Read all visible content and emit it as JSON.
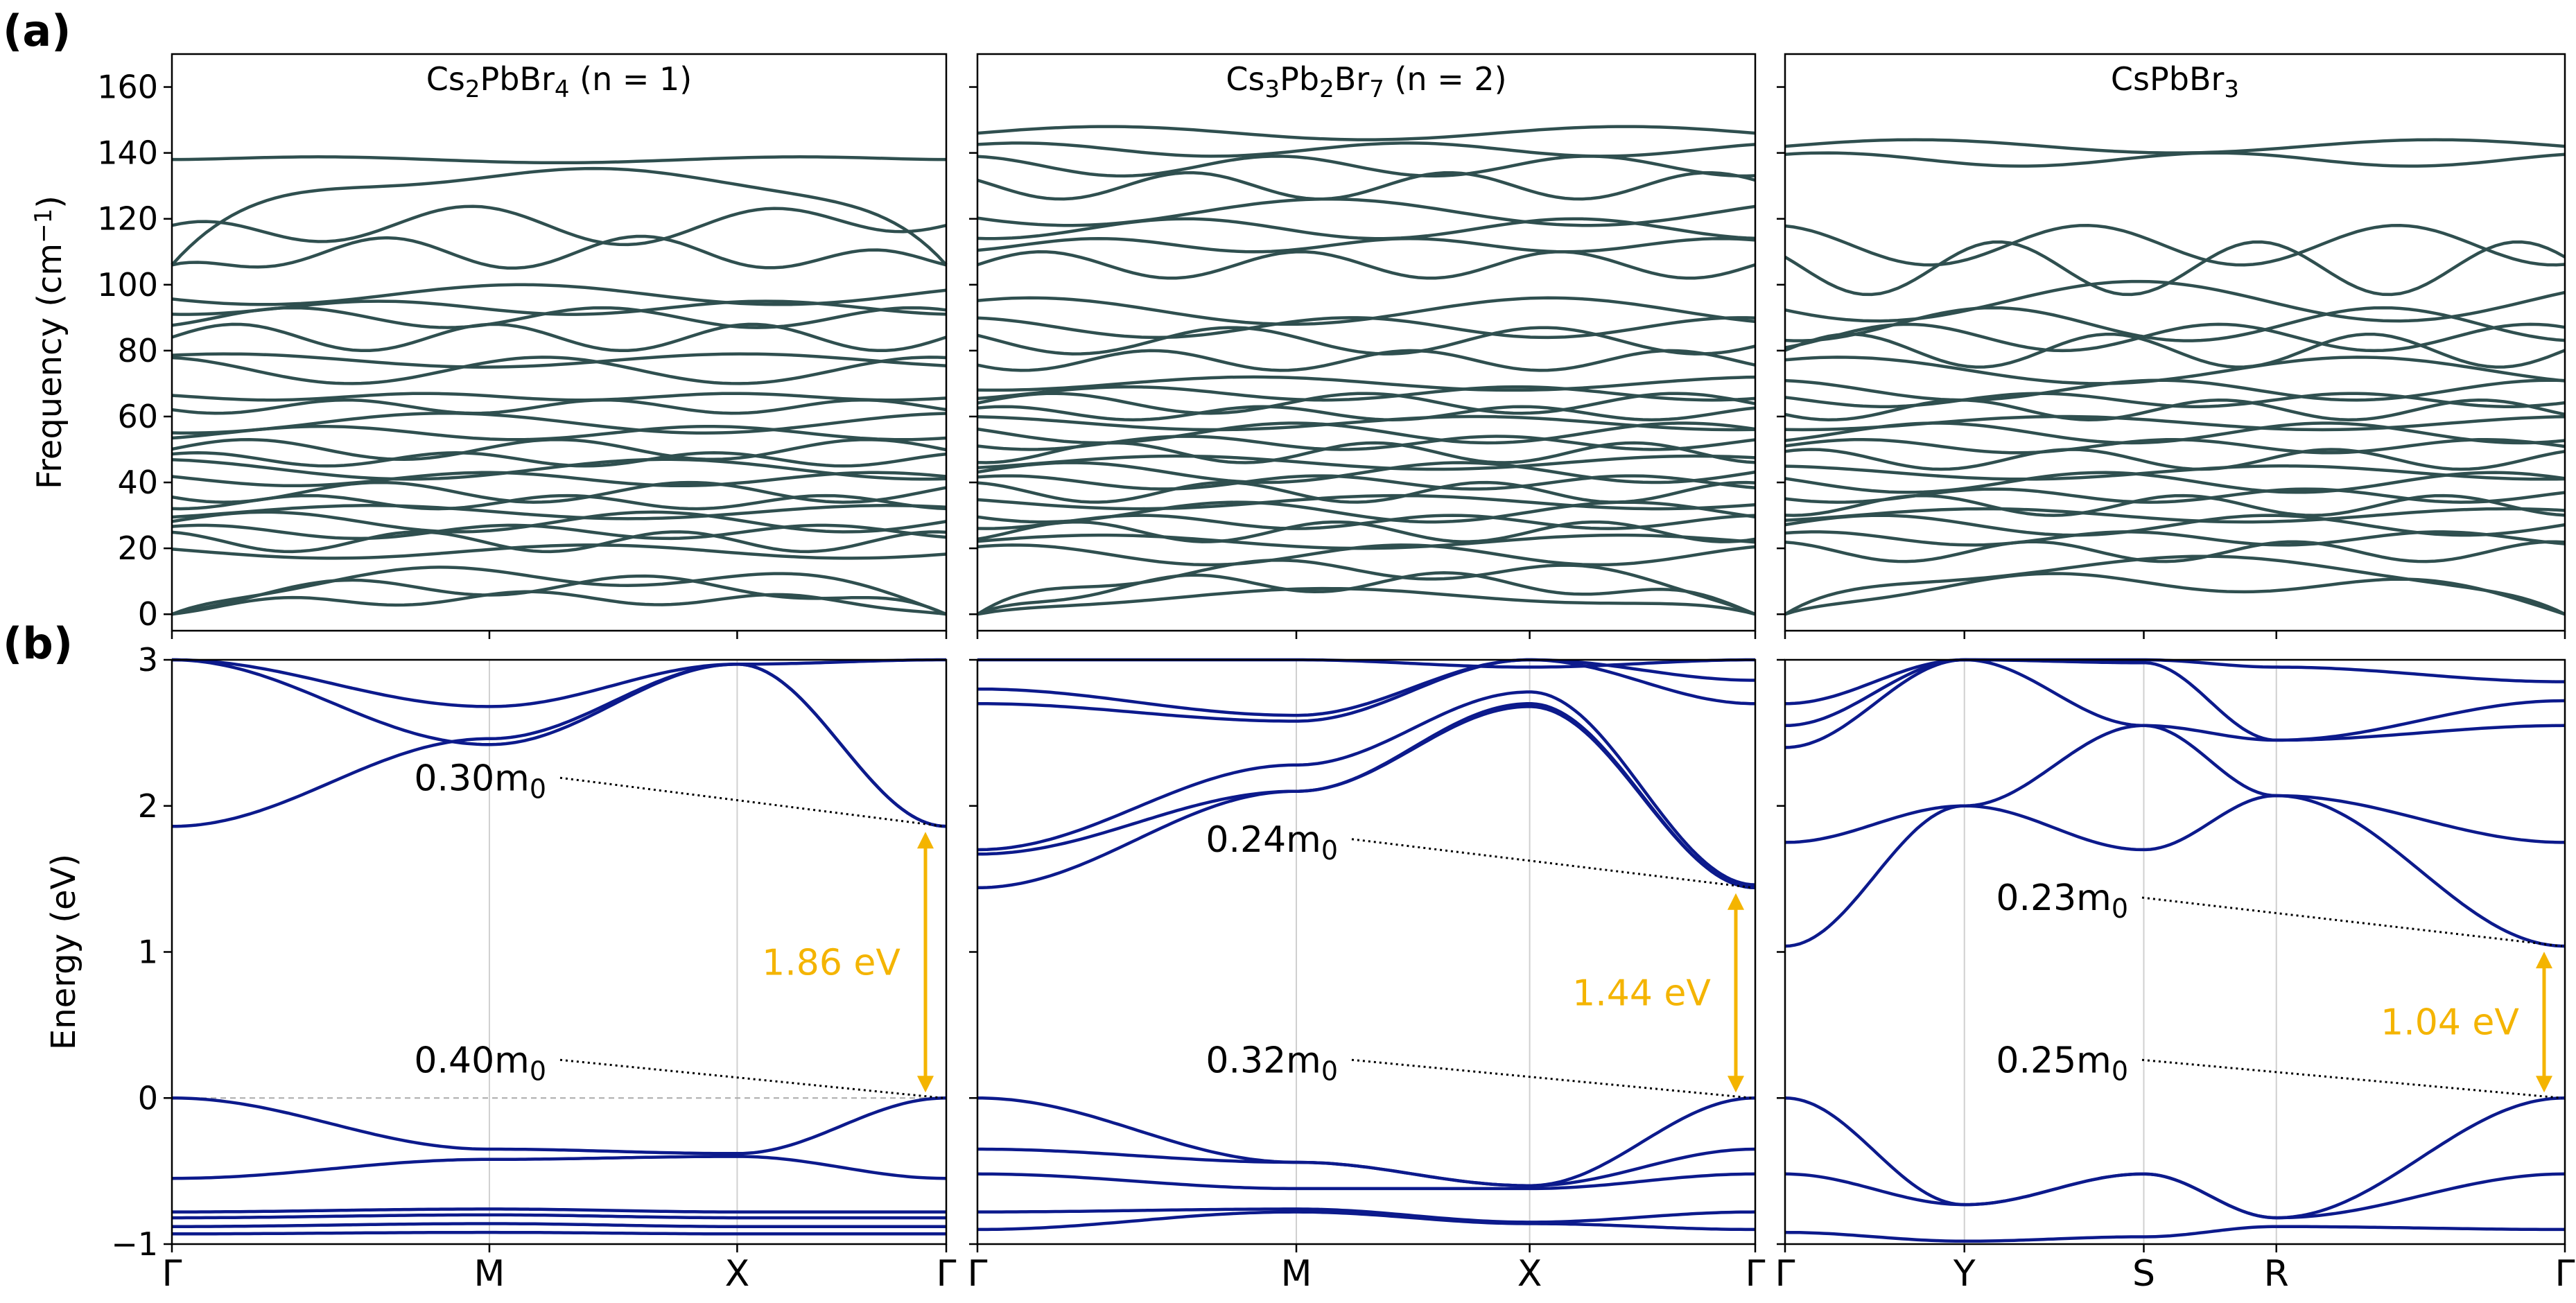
{
  "panel_labels": [
    "(a)",
    "(b)"
  ],
  "colors": {
    "phonon": "#2f4f4f",
    "band": "#0c1a8c",
    "gap_arrow": "#f4b400",
    "grid": "#d0d0d0"
  },
  "chart_data": [
    {
      "id": "phonon-n1",
      "type": "line",
      "title_main": "Cs",
      "title_parts": [
        [
          "Cs",
          ""
        ],
        [
          "2",
          "sub"
        ],
        [
          "PbBr",
          ""
        ],
        [
          "4",
          "sub"
        ],
        [
          " (n = 1)",
          ""
        ]
      ],
      "ylabel_main": "Frequency (cm",
      "ylabel_sup": "−1",
      "ylabel_end": ")",
      "ylim": [
        -5,
        170
      ],
      "yticks": [
        "0",
        "20",
        "40",
        "60",
        "80",
        "100",
        "120",
        "140",
        "160"
      ],
      "ytick_values": [
        0,
        20,
        40,
        60,
        80,
        100,
        120,
        140,
        160
      ],
      "kpoints": [
        "Γ",
        "M",
        "X",
        "Γ"
      ],
      "kpoint_positions": [
        0,
        0.41,
        0.73,
        1.0
      ],
      "bands": [
        {
          "level": 138,
          "amp": 1,
          "gamma_start": 138
        },
        {
          "level": 134,
          "amp": 2,
          "gamma_start": 106
        },
        {
          "level": 118,
          "amp": 6,
          "gamma_start": 118
        },
        {
          "level": 110,
          "amp": 5,
          "gamma_start": 106
        },
        {
          "level": 97,
          "amp": 3
        },
        {
          "level": 93,
          "amp": 2
        },
        {
          "level": 90,
          "amp": 3
        },
        {
          "level": 84,
          "amp": 4
        },
        {
          "level": 77,
          "amp": 2
        },
        {
          "level": 74,
          "amp": 4
        },
        {
          "level": 66,
          "amp": 1
        },
        {
          "level": 63,
          "amp": 2
        },
        {
          "level": 58,
          "amp": 3
        },
        {
          "level": 55,
          "amp": 2
        },
        {
          "level": 50,
          "amp": 3
        },
        {
          "level": 47,
          "amp": 2
        },
        {
          "level": 44,
          "amp": 3
        },
        {
          "level": 41,
          "amp": 2
        },
        {
          "level": 37,
          "amp": 3
        },
        {
          "level": 34,
          "amp": 2
        },
        {
          "level": 31,
          "amp": 2
        },
        {
          "level": 28,
          "amp": 3
        },
        {
          "level": 25,
          "amp": 2
        },
        {
          "level": 22,
          "amp": 3
        },
        {
          "level": 19,
          "amp": 2
        },
        {
          "level": 12,
          "amp": 3,
          "gamma_start": 0
        },
        {
          "level": 9,
          "amp": 3,
          "gamma_start": 0
        },
        {
          "level": 5,
          "amp": 2,
          "gamma_start": 0
        }
      ]
    },
    {
      "id": "phonon-n2",
      "type": "line",
      "title_parts": [
        [
          "Cs",
          ""
        ],
        [
          "3",
          "sub"
        ],
        [
          "Pb",
          ""
        ],
        [
          "2",
          "sub"
        ],
        [
          "Br",
          ""
        ],
        [
          "7",
          "sub"
        ],
        [
          " (n = 2)",
          ""
        ]
      ],
      "ylim": [
        -5,
        170
      ],
      "kpoints": [
        "Γ",
        "M",
        "X",
        "Γ"
      ],
      "kpoint_positions": [
        0,
        0.41,
        0.71,
        1.0
      ],
      "bands": [
        {
          "level": 146,
          "amp": 2
        },
        {
          "level": 141,
          "amp": 2
        },
        {
          "level": 136,
          "amp": 3
        },
        {
          "level": 130,
          "amp": 4
        },
        {
          "level": 122,
          "amp": 4
        },
        {
          "level": 117,
          "amp": 3
        },
        {
          "level": 112,
          "amp": 2
        },
        {
          "level": 106,
          "amp": 4
        },
        {
          "level": 92,
          "amp": 4
        },
        {
          "level": 87,
          "amp": 3
        },
        {
          "level": 83,
          "amp": 4
        },
        {
          "level": 77,
          "amp": 3
        },
        {
          "level": 70,
          "amp": 2
        },
        {
          "level": 67,
          "amp": 2
        },
        {
          "level": 64,
          "amp": 3
        },
        {
          "level": 61,
          "amp": 2
        },
        {
          "level": 58,
          "amp": 2
        },
        {
          "level": 55,
          "amp": 3
        },
        {
          "level": 52,
          "amp": 2
        },
        {
          "level": 49,
          "amp": 3
        },
        {
          "level": 46,
          "amp": 2
        },
        {
          "level": 43,
          "amp": 3
        },
        {
          "level": 40,
          "amp": 2
        },
        {
          "level": 37,
          "amp": 3
        },
        {
          "level": 34,
          "amp": 2
        },
        {
          "level": 31,
          "amp": 3
        },
        {
          "level": 28,
          "amp": 2
        },
        {
          "level": 25,
          "amp": 3
        },
        {
          "level": 22,
          "amp": 2
        },
        {
          "level": 18,
          "amp": 3
        },
        {
          "level": 14,
          "amp": 3,
          "gamma_start": 0
        },
        {
          "level": 10,
          "amp": 3,
          "gamma_start": 0
        },
        {
          "level": 6,
          "amp": 2,
          "gamma_start": 0
        }
      ]
    },
    {
      "id": "phonon-bulk",
      "type": "line",
      "title_parts": [
        [
          "CsPbBr",
          ""
        ],
        [
          "3",
          "sub"
        ]
      ],
      "ylim": [
        -5,
        170
      ],
      "kpoints": [
        "Γ",
        "Y",
        "S",
        "R",
        "Γ"
      ],
      "kpoint_positions": [
        0,
        0.23,
        0.46,
        0.63,
        1.0
      ],
      "bands": [
        {
          "level": 142,
          "amp": 2
        },
        {
          "level": 138,
          "amp": 2
        },
        {
          "level": 112,
          "amp": 6
        },
        {
          "level": 105,
          "amp": 8
        },
        {
          "level": 95,
          "amp": 6
        },
        {
          "level": 88,
          "amp": 5
        },
        {
          "level": 84,
          "amp": 4
        },
        {
          "level": 80,
          "amp": 5
        },
        {
          "level": 74,
          "amp": 4
        },
        {
          "level": 68,
          "amp": 3
        },
        {
          "level": 65,
          "amp": 2
        },
        {
          "level": 62,
          "amp": 3
        },
        {
          "level": 58,
          "amp": 2
        },
        {
          "level": 55,
          "amp": 3
        },
        {
          "level": 51,
          "amp": 2
        },
        {
          "level": 47,
          "amp": 3
        },
        {
          "level": 43,
          "amp": 2
        },
        {
          "level": 40,
          "amp": 3
        },
        {
          "level": 36,
          "amp": 2
        },
        {
          "level": 33,
          "amp": 3
        },
        {
          "level": 30,
          "amp": 2
        },
        {
          "level": 27,
          "amp": 3
        },
        {
          "level": 23,
          "amp": 2
        },
        {
          "level": 19,
          "amp": 3
        },
        {
          "level": 15,
          "amp": 3,
          "gamma_start": 0
        },
        {
          "level": 10,
          "amp": 3,
          "gamma_start": 0
        }
      ]
    },
    {
      "id": "bands-n1",
      "type": "line",
      "ylabel": "Energy (eV)",
      "ylim": [
        -1,
        3
      ],
      "yticks": [
        "−1",
        "0",
        "1",
        "2",
        "3"
      ],
      "ytick_values": [
        -1,
        0,
        1,
        2,
        3
      ],
      "kpoints": [
        "Γ",
        "M",
        "X",
        "Γ"
      ],
      "kpoint_positions": [
        0,
        0.41,
        0.73,
        1.0
      ],
      "gap": "1.86 eV",
      "gap_range": [
        0.0,
        1.86
      ],
      "mass_labels": [
        "0.30m",
        "0.40m"
      ],
      "mass_sub": "0",
      "cb_values": [
        [
          1.86,
          2.46,
          2.97,
          1.86
        ],
        [
          3.0,
          2.68,
          2.97,
          3.0
        ],
        [
          3.0,
          2.42,
          2.97,
          1.86
        ]
      ],
      "vb_values": [
        [
          0.0,
          -0.35,
          -0.38,
          0.0
        ],
        [
          -0.55,
          -0.42,
          -0.4,
          -0.55
        ],
        [
          -0.78,
          -0.76,
          -0.78,
          -0.78
        ],
        [
          -0.82,
          -0.8,
          -0.82,
          -0.82
        ],
        [
          -0.88,
          -0.86,
          -0.88,
          -0.88
        ],
        [
          -0.93,
          -0.92,
          -0.93,
          -0.93
        ]
      ]
    },
    {
      "id": "bands-n2",
      "type": "line",
      "ylim": [
        -1,
        3
      ],
      "kpoints": [
        "Γ",
        "M",
        "X",
        "Γ"
      ],
      "kpoint_positions": [
        0,
        0.41,
        0.71,
        1.0
      ],
      "gap": "1.44 eV",
      "gap_range": [
        0.0,
        1.44
      ],
      "mass_labels": [
        "0.24m",
        "0.32m"
      ],
      "mass_sub": "0",
      "cb_values": [
        [
          1.44,
          2.1,
          2.7,
          1.44
        ],
        [
          1.67,
          2.1,
          2.68,
          1.44
        ],
        [
          1.7,
          2.28,
          2.78,
          1.46
        ],
        [
          2.7,
          2.58,
          3.0,
          2.7
        ],
        [
          2.8,
          2.62,
          3.0,
          2.86
        ],
        [
          3.0,
          3.0,
          2.95,
          3.0
        ]
      ],
      "vb_values": [
        [
          0.0,
          -0.44,
          -0.6,
          0.0
        ],
        [
          -0.35,
          -0.44,
          -0.6,
          -0.35
        ],
        [
          -0.52,
          -0.62,
          -0.62,
          -0.52
        ],
        [
          -0.78,
          -0.76,
          -0.85,
          -0.78
        ],
        [
          -0.9,
          -0.78,
          -0.86,
          -0.9
        ]
      ]
    },
    {
      "id": "bands-bulk",
      "type": "line",
      "ylim": [
        -1,
        3
      ],
      "kpoints": [
        "Γ",
        "Y",
        "S",
        "R",
        "Γ"
      ],
      "kpoint_positions": [
        0,
        0.23,
        0.46,
        0.63,
        1.0
      ],
      "gap": "1.04 eV",
      "gap_range": [
        0.0,
        1.04
      ],
      "mass_labels": [
        "0.23m",
        "0.25m"
      ],
      "mass_sub": "0",
      "cb_values": [
        [
          1.04,
          2.0,
          1.7,
          2.07,
          1.04
        ],
        [
          1.75,
          2.0,
          2.55,
          2.07,
          1.75
        ],
        [
          2.4,
          3.0,
          2.55,
          2.45,
          2.55
        ],
        [
          2.55,
          3.0,
          2.98,
          2.45,
          2.72
        ],
        [
          2.7,
          3.0,
          3.0,
          2.95,
          2.85
        ]
      ],
      "vb_values": [
        [
          0.0,
          -0.73,
          -0.52,
          -0.82,
          0.0
        ],
        [
          -0.52,
          -0.73,
          -0.52,
          -0.82,
          -0.52
        ],
        [
          -0.92,
          -0.98,
          -0.95,
          -0.88,
          -0.9
        ]
      ]
    }
  ]
}
